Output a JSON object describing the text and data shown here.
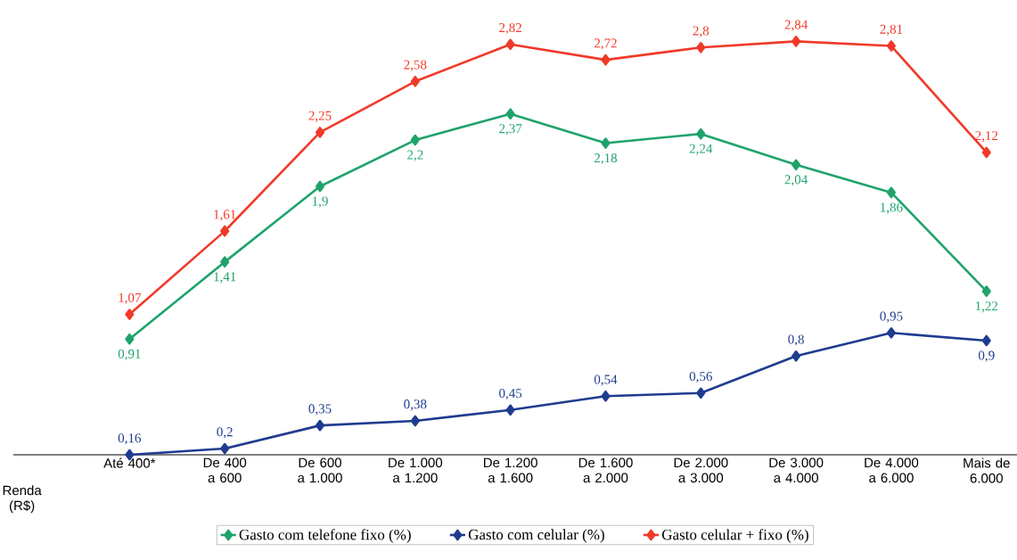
{
  "chart_data": {
    "type": "line",
    "xlabel": "Renda (R$)",
    "categories": [
      "Até 400*",
      "De 400 a 600",
      "De 600 a 1.000",
      "De 1.000 a 1.200",
      "De 1.200 a 1.600",
      "De 1.600 a 2.000",
      "De 2.000 a 3.000",
      "De 3.000 a 4.000",
      "De 4.000 a 6.000",
      "Mais de 6.000"
    ],
    "series": [
      {
        "name": "Gasto com telefone fixo (%)",
        "color": "#1fa36b",
        "values": [
          0.91,
          1.41,
          1.9,
          2.2,
          2.37,
          2.18,
          2.24,
          2.04,
          1.86,
          1.22
        ],
        "value_labels": [
          "0,91",
          "1,41",
          "1,9",
          "2,2",
          "2,37",
          "2,18",
          "2,24",
          "2,04",
          "1,86",
          "1,22"
        ]
      },
      {
        "name": "Gasto com celular (%)",
        "color": "#1f3c8f",
        "values": [
          0.16,
          0.2,
          0.35,
          0.38,
          0.45,
          0.54,
          0.56,
          0.8,
          0.95,
          0.9
        ],
        "value_labels": [
          "0,16",
          "0,2",
          "0,35",
          "0,38",
          "0,45",
          "0,54",
          "0,56",
          "0,8",
          "0,95",
          "0,9"
        ]
      },
      {
        "name": "Gasto celular + fixo (%)",
        "color": "#f03a2a",
        "values": [
          1.07,
          1.61,
          2.25,
          2.58,
          2.82,
          2.72,
          2.8,
          2.84,
          2.81,
          2.12
        ],
        "value_labels": [
          "1,07",
          "1,61",
          "2,25",
          "2,58",
          "2,82",
          "2,72",
          "2,8",
          "2,84",
          "2,81",
          "2,12"
        ]
      }
    ],
    "tick_labels": "x",
    "marker": "diamond",
    "line_style": "solid",
    "grid": false,
    "legend": "bottom"
  }
}
